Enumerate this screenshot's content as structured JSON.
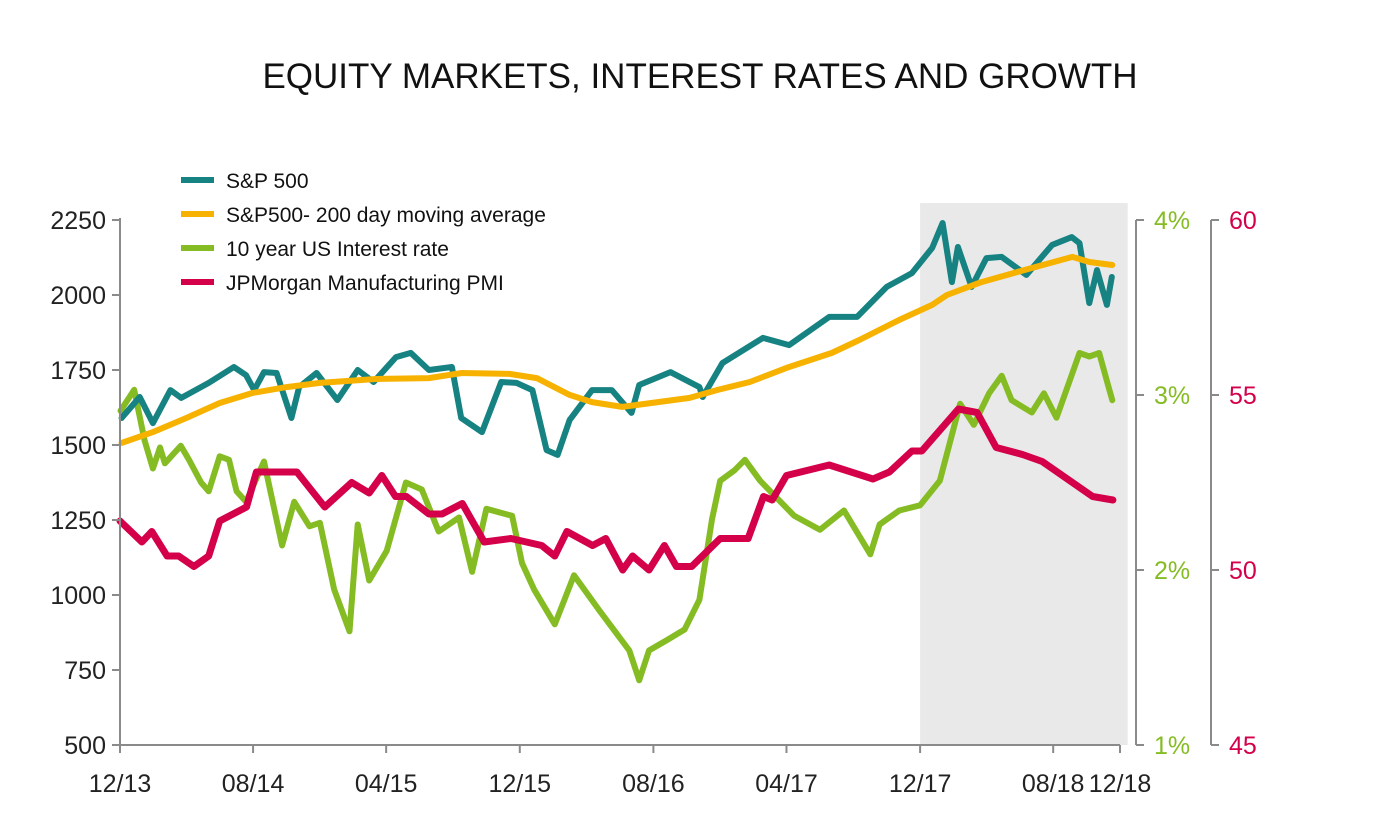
{
  "chart_data": {
    "type": "line",
    "title": "EQUITY MARKETS, INTEREST RATES AND GROWTH",
    "x_ticks": [
      "12/13",
      "08/14",
      "04/15",
      "12/15",
      "08/16",
      "04/17",
      "12/17",
      "08/18",
      "12/18"
    ],
    "x_range": [
      "2013-12-01",
      "2018-12-01"
    ],
    "shaded_period": [
      "2017-12-01",
      "2018-12-15"
    ],
    "y_left": {
      "range": [
        500,
        2250
      ],
      "ticks": [
        "500",
        "750",
        "1000",
        "1250",
        "1500",
        "1750",
        "2000",
        "2250"
      ],
      "color": "#222222"
    },
    "y_right_rate": {
      "range": [
        1,
        4
      ],
      "ticks": [
        "1%",
        "2%",
        "3%",
        "4%"
      ],
      "color": "#85bc24"
    },
    "y_right_pmi": {
      "range": [
        45,
        60
      ],
      "ticks": [
        "45",
        "50",
        "55",
        "60"
      ],
      "color": "#d4004a"
    },
    "legend_position": "top-left",
    "grid": false,
    "series": [
      {
        "name": "S&P 500",
        "axis": "left",
        "color": "#178282",
        "points": [
          [
            "2013-12-04",
            1590
          ],
          [
            "2014-01-06",
            1660
          ],
          [
            "2014-01-30",
            1573
          ],
          [
            "2014-03-03",
            1683
          ],
          [
            "2014-03-23",
            1657
          ],
          [
            "2014-05-12",
            1707
          ],
          [
            "2014-06-27",
            1760
          ],
          [
            "2014-07-19",
            1733
          ],
          [
            "2014-08-03",
            1683
          ],
          [
            "2014-08-21",
            1743
          ],
          [
            "2014-09-13",
            1740
          ],
          [
            "2014-10-10",
            1590
          ],
          [
            "2014-10-24",
            1693
          ],
          [
            "2014-11-25",
            1740
          ],
          [
            "2015-01-02",
            1650
          ],
          [
            "2015-02-08",
            1750
          ],
          [
            "2015-03-09",
            1710
          ],
          [
            "2015-04-19",
            1793
          ],
          [
            "2015-05-16",
            1807
          ],
          [
            "2015-06-18",
            1750
          ],
          [
            "2015-07-30",
            1760
          ],
          [
            "2015-08-16",
            1590
          ],
          [
            "2015-09-23",
            1543
          ],
          [
            "2015-10-28",
            1710
          ],
          [
            "2015-11-25",
            1707
          ],
          [
            "2015-12-24",
            1683
          ],
          [
            "2016-01-19",
            1483
          ],
          [
            "2016-02-08",
            1467
          ],
          [
            "2016-03-01",
            1583
          ],
          [
            "2016-04-11",
            1683
          ],
          [
            "2016-05-17",
            1683
          ],
          [
            "2016-06-22",
            1607
          ],
          [
            "2016-07-06",
            1700
          ],
          [
            "2016-09-01",
            1743
          ],
          [
            "2016-10-24",
            1693
          ],
          [
            "2016-10-30",
            1660
          ],
          [
            "2016-12-05",
            1773
          ],
          [
            "2017-02-17",
            1857
          ],
          [
            "2017-04-06",
            1833
          ],
          [
            "2017-06-18",
            1927
          ],
          [
            "2017-08-08",
            1927
          ],
          [
            "2017-10-01",
            2027
          ],
          [
            "2017-11-16",
            2073
          ],
          [
            "2017-12-23",
            2157
          ],
          [
            "2018-01-11",
            2240
          ],
          [
            "2018-01-28",
            2043
          ],
          [
            "2018-02-08",
            2160
          ],
          [
            "2018-03-05",
            2027
          ],
          [
            "2018-04-01",
            2123
          ],
          [
            "2018-04-29",
            2127
          ],
          [
            "2018-06-13",
            2067
          ],
          [
            "2018-07-30",
            2167
          ],
          [
            "2018-09-04",
            2193
          ],
          [
            "2018-09-18",
            2173
          ],
          [
            "2018-10-06",
            1973
          ],
          [
            "2018-10-20",
            2083
          ],
          [
            "2018-11-07",
            1967
          ],
          [
            "2018-11-16",
            2060
          ]
        ]
      },
      {
        "name": "S&P500- 200 day moving average",
        "axis": "left",
        "color": "#f7b200",
        "points": [
          [
            "2013-12-04",
            1507
          ],
          [
            "2014-01-30",
            1543
          ],
          [
            "2014-04-01",
            1590
          ],
          [
            "2014-06-01",
            1640
          ],
          [
            "2014-07-30",
            1673
          ],
          [
            "2014-10-01",
            1693
          ],
          [
            "2014-12-01",
            1707
          ],
          [
            "2015-03-13",
            1720
          ],
          [
            "2015-06-18",
            1723
          ],
          [
            "2015-08-17",
            1740
          ],
          [
            "2015-11-12",
            1737
          ],
          [
            "2016-01-01",
            1723
          ],
          [
            "2016-03-01",
            1667
          ],
          [
            "2016-04-11",
            1643
          ],
          [
            "2016-06-05",
            1627
          ],
          [
            "2016-10-06",
            1657
          ],
          [
            "2016-11-25",
            1683
          ],
          [
            "2017-01-24",
            1710
          ],
          [
            "2017-04-01",
            1757
          ],
          [
            "2017-06-23",
            1807
          ],
          [
            "2017-08-12",
            1850
          ],
          [
            "2017-10-24",
            1917
          ],
          [
            "2017-12-23",
            1967
          ],
          [
            "2018-01-19",
            2000
          ],
          [
            "2018-03-23",
            2043
          ],
          [
            "2018-06-23",
            2090
          ],
          [
            "2018-09-05",
            2127
          ],
          [
            "2018-10-06",
            2110
          ],
          [
            "2018-11-17",
            2100
          ]
        ]
      },
      {
        "name": "10 year US Interest rate",
        "axis": "rate",
        "color": "#85bc24",
        "points": [
          [
            "2013-12-02",
            2.91
          ],
          [
            "2013-12-27",
            3.03
          ],
          [
            "2014-01-15",
            2.74
          ],
          [
            "2014-01-30",
            2.58
          ],
          [
            "2014-02-12",
            2.7
          ],
          [
            "2014-02-21",
            2.61
          ],
          [
            "2014-03-22",
            2.71
          ],
          [
            "2014-04-06",
            2.63
          ],
          [
            "2014-04-28",
            2.5
          ],
          [
            "2014-05-12",
            2.45
          ],
          [
            "2014-06-01",
            2.65
          ],
          [
            "2014-06-18",
            2.63
          ],
          [
            "2014-07-02",
            2.45
          ],
          [
            "2014-07-19",
            2.39
          ],
          [
            "2014-08-21",
            2.62
          ],
          [
            "2014-09-23",
            2.14
          ],
          [
            "2014-10-15",
            2.39
          ],
          [
            "2014-11-12",
            2.25
          ],
          [
            "2014-12-01",
            2.27
          ],
          [
            "2014-12-27",
            1.89
          ],
          [
            "2015-01-24",
            1.65
          ],
          [
            "2015-02-08",
            2.26
          ],
          [
            "2015-03-01",
            1.94
          ],
          [
            "2015-04-02",
            2.11
          ],
          [
            "2015-05-07",
            2.5
          ],
          [
            "2015-06-05",
            2.46
          ],
          [
            "2015-07-06",
            2.22
          ],
          [
            "2015-08-12",
            2.3
          ],
          [
            "2015-09-05",
            1.99
          ],
          [
            "2015-10-01",
            2.35
          ],
          [
            "2015-11-17",
            2.31
          ],
          [
            "2015-12-05",
            2.04
          ],
          [
            "2015-12-27",
            1.89
          ],
          [
            "2016-02-03",
            1.69
          ],
          [
            "2016-03-09",
            1.97
          ],
          [
            "2016-04-24",
            1.77
          ],
          [
            "2016-06-18",
            1.54
          ],
          [
            "2016-07-06",
            1.37
          ],
          [
            "2016-07-24",
            1.54
          ],
          [
            "2016-08-26",
            1.6
          ],
          [
            "2016-09-27",
            1.66
          ],
          [
            "2016-10-24",
            1.83
          ],
          [
            "2016-11-16",
            2.29
          ],
          [
            "2016-12-01",
            2.51
          ],
          [
            "2016-12-27",
            2.57
          ],
          [
            "2017-01-15",
            2.63
          ],
          [
            "2017-02-12",
            2.51
          ],
          [
            "2017-03-18",
            2.4
          ],
          [
            "2017-04-15",
            2.31
          ],
          [
            "2017-06-01",
            2.23
          ],
          [
            "2017-07-15",
            2.34
          ],
          [
            "2017-09-01",
            2.09
          ],
          [
            "2017-09-18",
            2.26
          ],
          [
            "2017-10-24",
            2.34
          ],
          [
            "2017-12-01",
            2.37
          ],
          [
            "2018-01-06",
            2.51
          ],
          [
            "2018-02-12",
            2.95
          ],
          [
            "2018-03-09",
            2.83
          ],
          [
            "2018-04-06",
            3.01
          ],
          [
            "2018-04-29",
            3.11
          ],
          [
            "2018-05-17",
            2.97
          ],
          [
            "2018-06-23",
            2.9
          ],
          [
            "2018-07-15",
            3.01
          ],
          [
            "2018-08-07",
            2.87
          ],
          [
            "2018-09-01",
            3.09
          ],
          [
            "2018-09-18",
            3.24
          ],
          [
            "2018-10-06",
            3.22
          ],
          [
            "2018-10-24",
            3.24
          ],
          [
            "2018-11-08",
            3.07
          ],
          [
            "2018-11-17",
            2.97
          ]
        ]
      },
      {
        "name": "JPMorgan Manufacturing PMI",
        "axis": "pmi",
        "color": "#d4004a",
        "points": [
          [
            "2013-12-01",
            51.4
          ],
          [
            "2014-01-10",
            50.8
          ],
          [
            "2014-01-28",
            51.1
          ],
          [
            "2014-02-25",
            50.4
          ],
          [
            "2014-03-18",
            50.4
          ],
          [
            "2014-04-15",
            50.1
          ],
          [
            "2014-05-12",
            50.4
          ],
          [
            "2014-06-01",
            51.4
          ],
          [
            "2014-07-20",
            51.8
          ],
          [
            "2014-08-07",
            52.8
          ],
          [
            "2014-10-20",
            52.8
          ],
          [
            "2014-12-10",
            51.8
          ],
          [
            "2015-01-28",
            52.5
          ],
          [
            "2015-03-01",
            52.2
          ],
          [
            "2015-03-24",
            52.7
          ],
          [
            "2015-04-18",
            52.1
          ],
          [
            "2015-05-08",
            52.1
          ],
          [
            "2015-06-18",
            51.6
          ],
          [
            "2015-07-12",
            51.6
          ],
          [
            "2015-08-18",
            51.9
          ],
          [
            "2015-09-27",
            50.8
          ],
          [
            "2015-11-15",
            50.9
          ],
          [
            "2016-01-10",
            50.7
          ],
          [
            "2016-02-03",
            50.4
          ],
          [
            "2016-02-25",
            51.1
          ],
          [
            "2016-04-12",
            50.7
          ],
          [
            "2016-05-06",
            50.9
          ],
          [
            "2016-06-06",
            50.0
          ],
          [
            "2016-06-24",
            50.4
          ],
          [
            "2016-07-24",
            50.0
          ],
          [
            "2016-08-21",
            50.7
          ],
          [
            "2016-09-12",
            50.1
          ],
          [
            "2016-10-10",
            50.1
          ],
          [
            "2016-12-01",
            50.9
          ],
          [
            "2017-01-21",
            50.9
          ],
          [
            "2017-02-18",
            52.1
          ],
          [
            "2017-03-06",
            52.0
          ],
          [
            "2017-04-01",
            52.7
          ],
          [
            "2017-06-18",
            53.0
          ],
          [
            "2017-09-06",
            52.6
          ],
          [
            "2017-10-06",
            52.8
          ],
          [
            "2017-11-16",
            53.4
          ],
          [
            "2017-12-04",
            53.4
          ],
          [
            "2018-02-09",
            54.6
          ],
          [
            "2018-03-15",
            54.5
          ],
          [
            "2018-04-19",
            53.5
          ],
          [
            "2018-06-06",
            53.3
          ],
          [
            "2018-07-12",
            53.1
          ],
          [
            "2018-10-12",
            52.1
          ],
          [
            "2018-11-18",
            52.0
          ]
        ]
      }
    ]
  }
}
